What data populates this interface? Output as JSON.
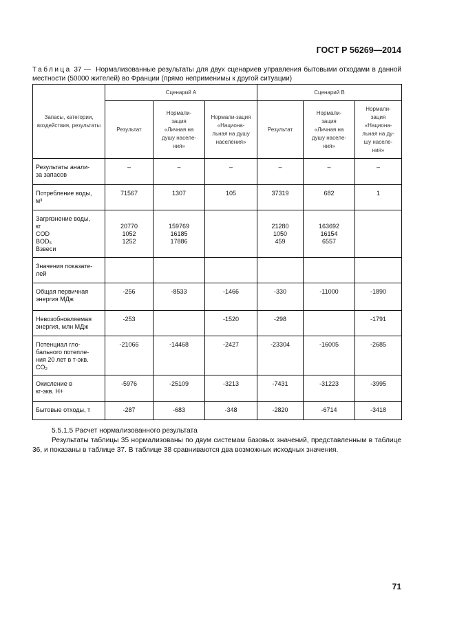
{
  "header": {
    "doc_id": "ГОСТ Р 56269—2014"
  },
  "caption": {
    "prefix": "Таблица",
    "number": "37 —",
    "text": "Нормализованные результаты для двух сценариев управления бытовыми отходами в данной местности (50000 жителей) во Франции (прямо неприменимы к другой ситуации)"
  },
  "table": {
    "row_header": "Запасы, категории, воздействия, результаты",
    "scenario_a": "Сценарий А",
    "scenario_b": "Сценарий В",
    "sub_headers": [
      "Результат",
      "Нормали-\nзация\n«Личная на\nдушу населе-\nния»",
      "Нормали-зация\n«Национа-\nльная на душу\nнаселения»",
      "Результат",
      "Нормали-\nзация\n«Личная на\nдушу населе-\nния»",
      "Нормали-\nзация\n«Национа-\nльная на ду-\nшу населе-\nния»"
    ],
    "rows": [
      {
        "label": "Результаты анали-\nза запасов",
        "cells": [
          "–",
          "–",
          "–",
          "–",
          "–",
          "–"
        ]
      },
      {
        "label": "Потребление воды,\nм³",
        "cells": [
          "71567",
          "1307",
          "105",
          "37319",
          "682",
          "1"
        ]
      },
      {
        "label": "Загрязнение воды,\nкг\nCOD\nBOD₅\nВзвеси",
        "cells": [
          "\n20770\n1052\n1252",
          "\n159769\n16185\n17886",
          "",
          "\n21280\n1050\n459",
          "\n163692\n16154\n6557",
          ""
        ]
      },
      {
        "label": "Значения показате-\nлей",
        "cells": [
          "",
          "",
          "",
          "",
          "",
          ""
        ]
      },
      {
        "label": "Общая первичная\nэнергия МДж",
        "cells": [
          "-256",
          "-8533",
          "-1466",
          "-330",
          "-11000",
          "-1890"
        ]
      },
      {
        "label": "Невозобновляемая\nэнергия, млн МДж",
        "cells": [
          "-253",
          "",
          "-1520",
          "-298",
          "",
          "-1791"
        ]
      },
      {
        "label": "Потенциал гло-\nбального потепле-\nния 20 лет в т-экв.\nCO₂",
        "cells": [
          "-21066",
          "-14468",
          "-2427",
          "-23304",
          "-16005",
          "-2685"
        ]
      },
      {
        "label": "Окисление в\nкг-экв. Н+",
        "cells": [
          "-5976",
          "-25109",
          "-3213",
          "-7431",
          "-31223",
          "-3995"
        ]
      },
      {
        "label": "Бытовые отходы, т",
        "cells": [
          "-287",
          "-683",
          "-348",
          "-2820",
          "-6714",
          "-3418"
        ]
      }
    ]
  },
  "section": {
    "heading": "5.5.1.5 Расчет нормализованного результата",
    "paragraph": "Результаты таблицы 35 нормализованы по двум системам базовых значений, представленным в таблице 36, и показаны в таблице 37. В таблице 38 сравниваются два возможных исходных значения."
  },
  "page_number": "71"
}
